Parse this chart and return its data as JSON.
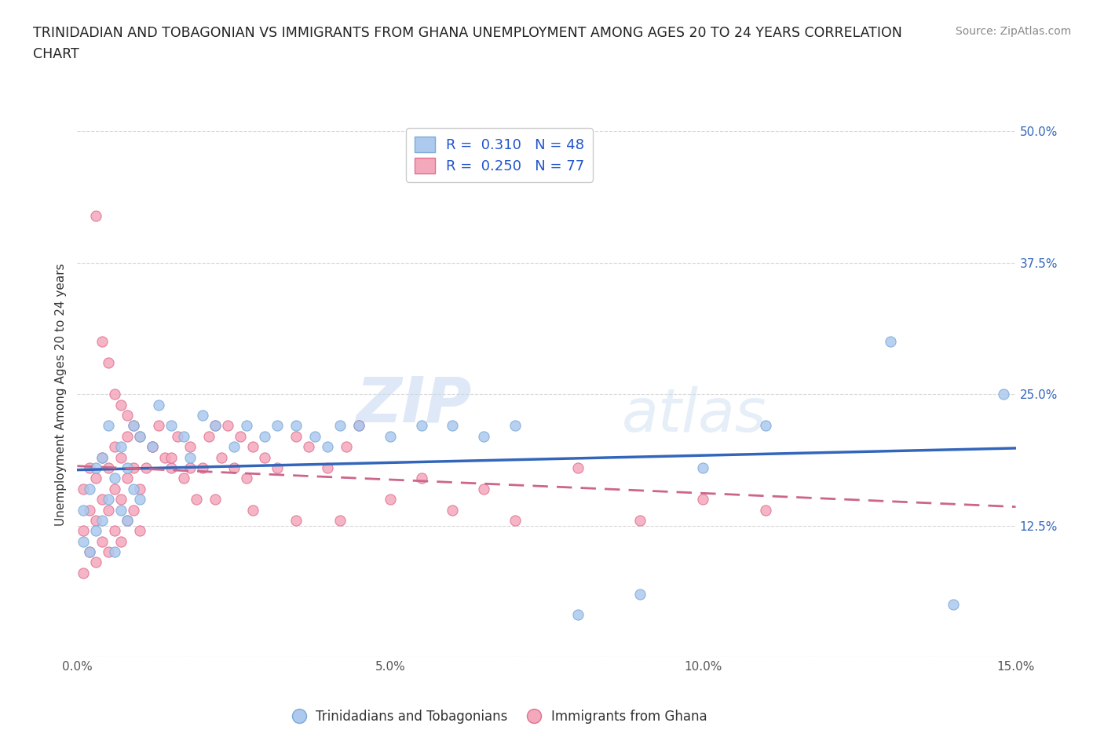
{
  "title": "TRINIDADIAN AND TOBAGONIAN VS IMMIGRANTS FROM GHANA UNEMPLOYMENT AMONG AGES 20 TO 24 YEARS CORRELATION\nCHART",
  "source_text": "Source: ZipAtlas.com",
  "watermark_part1": "ZIP",
  "watermark_part2": "atlas",
  "ylabel": "Unemployment Among Ages 20 to 24 years",
  "xlim": [
    0.0,
    0.15
  ],
  "ylim": [
    0.0,
    0.5
  ],
  "xticks": [
    0.0,
    0.05,
    0.1,
    0.15
  ],
  "xtick_labels": [
    "0.0%",
    "5.0%",
    "10.0%",
    "15.0%"
  ],
  "yticks": [
    0.0,
    0.125,
    0.25,
    0.375,
    0.5
  ],
  "ytick_labels": [
    "",
    "12.5%",
    "25.0%",
    "37.5%",
    "50.0%"
  ],
  "background_color": "#ffffff",
  "grid_color": "#d8d8d8",
  "series1_label": "Trinidadians and Tobagonians",
  "series1_color": "#adc9ee",
  "series1_edge_color": "#7aaad8",
  "series1_R": 0.31,
  "series1_N": 48,
  "series1_trend_color": "#3366bb",
  "series2_label": "Immigrants from Ghana",
  "series2_color": "#f4a8bc",
  "series2_edge_color": "#e07090",
  "series2_R": 0.25,
  "series2_N": 77,
  "series2_trend_color": "#cc6688",
  "legend_color": "#2255cc",
  "series1_x": [
    0.001,
    0.001,
    0.002,
    0.002,
    0.003,
    0.003,
    0.004,
    0.004,
    0.005,
    0.005,
    0.006,
    0.006,
    0.007,
    0.007,
    0.008,
    0.008,
    0.009,
    0.009,
    0.01,
    0.01,
    0.012,
    0.013,
    0.015,
    0.017,
    0.018,
    0.02,
    0.022,
    0.025,
    0.027,
    0.03,
    0.032,
    0.035,
    0.038,
    0.04,
    0.042,
    0.045,
    0.05,
    0.055,
    0.06,
    0.065,
    0.07,
    0.08,
    0.09,
    0.1,
    0.11,
    0.13,
    0.14,
    0.148
  ],
  "series1_y": [
    0.11,
    0.14,
    0.1,
    0.16,
    0.12,
    0.18,
    0.13,
    0.19,
    0.15,
    0.22,
    0.1,
    0.17,
    0.14,
    0.2,
    0.13,
    0.18,
    0.16,
    0.22,
    0.15,
    0.21,
    0.2,
    0.24,
    0.22,
    0.21,
    0.19,
    0.23,
    0.22,
    0.2,
    0.22,
    0.21,
    0.22,
    0.22,
    0.21,
    0.2,
    0.22,
    0.22,
    0.21,
    0.22,
    0.22,
    0.21,
    0.22,
    0.04,
    0.06,
    0.18,
    0.22,
    0.3,
    0.05,
    0.25
  ],
  "series2_x": [
    0.001,
    0.001,
    0.001,
    0.002,
    0.002,
    0.002,
    0.003,
    0.003,
    0.003,
    0.004,
    0.004,
    0.004,
    0.005,
    0.005,
    0.005,
    0.006,
    0.006,
    0.006,
    0.007,
    0.007,
    0.007,
    0.008,
    0.008,
    0.008,
    0.009,
    0.009,
    0.01,
    0.01,
    0.011,
    0.012,
    0.013,
    0.014,
    0.015,
    0.016,
    0.017,
    0.018,
    0.019,
    0.02,
    0.021,
    0.022,
    0.023,
    0.024,
    0.025,
    0.026,
    0.027,
    0.028,
    0.03,
    0.032,
    0.035,
    0.037,
    0.04,
    0.043,
    0.045,
    0.05,
    0.055,
    0.06,
    0.065,
    0.07,
    0.08,
    0.09,
    0.1,
    0.11,
    0.003,
    0.004,
    0.005,
    0.006,
    0.007,
    0.008,
    0.009,
    0.01,
    0.012,
    0.015,
    0.018,
    0.022,
    0.028,
    0.035,
    0.042
  ],
  "series2_y": [
    0.08,
    0.12,
    0.16,
    0.1,
    0.14,
    0.18,
    0.09,
    0.13,
    0.17,
    0.11,
    0.15,
    0.19,
    0.1,
    0.14,
    0.18,
    0.12,
    0.16,
    0.2,
    0.11,
    0.15,
    0.19,
    0.13,
    0.17,
    0.21,
    0.14,
    0.18,
    0.12,
    0.16,
    0.18,
    0.2,
    0.22,
    0.19,
    0.18,
    0.21,
    0.17,
    0.2,
    0.15,
    0.18,
    0.21,
    0.22,
    0.19,
    0.22,
    0.18,
    0.21,
    0.17,
    0.2,
    0.19,
    0.18,
    0.21,
    0.2,
    0.18,
    0.2,
    0.22,
    0.15,
    0.17,
    0.14,
    0.16,
    0.13,
    0.18,
    0.13,
    0.15,
    0.14,
    0.42,
    0.3,
    0.28,
    0.25,
    0.24,
    0.23,
    0.22,
    0.21,
    0.2,
    0.19,
    0.18,
    0.15,
    0.14,
    0.13,
    0.13
  ]
}
